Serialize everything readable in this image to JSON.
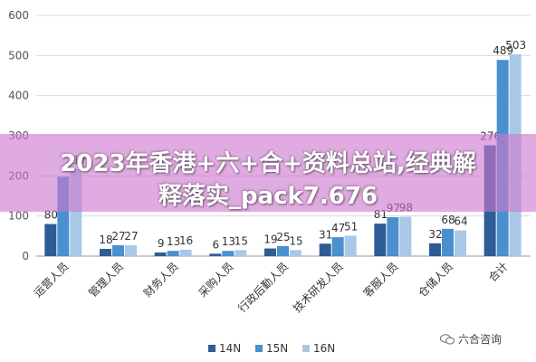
{
  "banner": {
    "line1": "2023年香港+六+合+资料总站,经典解",
    "line2": "释落实_pack7.676"
  },
  "watermark": "六合咨询",
  "colors": {
    "14N": "#2e5d96",
    "15N": "#4a8fd0",
    "16N": "#a9c8e8",
    "grid": "#d9d9d9",
    "axis": "#555555"
  },
  "chart_data": {
    "type": "bar",
    "categories": [
      "运营人员",
      "管理人员",
      "财务人员",
      "采购人员",
      "行政后勤人员",
      "技术研发人员",
      "客服人员",
      "仓储人员",
      "合计"
    ],
    "series": [
      {
        "name": "14N",
        "values": [
          80,
          18,
          9,
          6,
          19,
          31,
          81,
          32,
          276
        ]
      },
      {
        "name": "15N",
        "values": [
          198,
          27,
          13,
          13,
          25,
          47,
          97,
          68,
          489
        ]
      },
      {
        "name": "16N",
        "values": [
          217,
          27,
          16,
          15,
          15,
          51,
          98,
          64,
          503
        ]
      }
    ],
    "data_labels": [
      [
        "80",
        "",
        "217"
      ],
      [
        "18",
        "27",
        "27"
      ],
      [
        "9",
        "13",
        "16"
      ],
      [
        "6",
        "13",
        "15"
      ],
      [
        "19",
        "25",
        "15"
      ],
      [
        "31",
        "47",
        "51"
      ],
      [
        "81",
        "97",
        "98"
      ],
      [
        "32",
        "68",
        "64"
      ],
      [
        "276",
        "489",
        "503"
      ]
    ],
    "yticks": [
      "0",
      "100",
      "200",
      "300",
      "400",
      "500",
      "600"
    ],
    "ylim": [
      0,
      600
    ],
    "legend_position": "bottom",
    "grid": true
  }
}
